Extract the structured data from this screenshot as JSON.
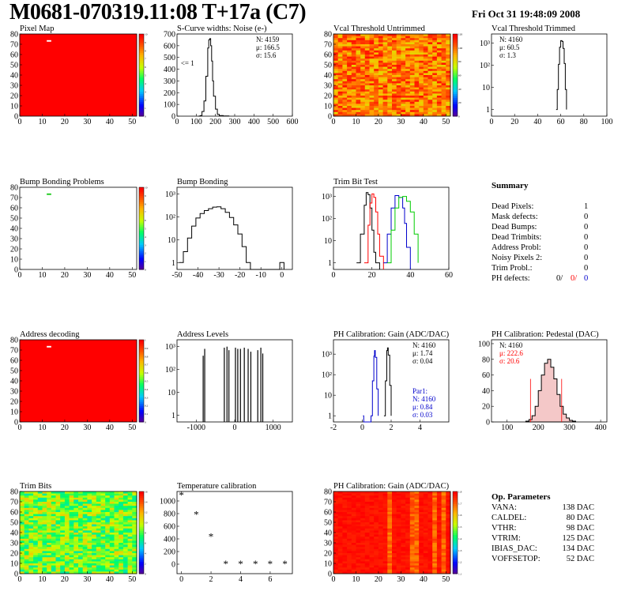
{
  "header": {
    "title": "M0681-070319.11:08 T+17a (C7)",
    "date": "Fri Oct 31 19:48:09 2008"
  },
  "colors": {
    "black": "#000000",
    "red": "#ff0000",
    "green": "#00cc00",
    "blue": "#0000cc"
  },
  "chart_data": [
    {
      "id": "pixel-map",
      "type": "heatmap",
      "title": "Pixel Map",
      "x_ticks": [
        "0",
        "10",
        "20",
        "30",
        "40",
        "50"
      ],
      "y_ticks": [
        "0",
        "10",
        "20",
        "30",
        "40",
        "50",
        "60",
        "70",
        "80"
      ],
      "z_ticks": [
        "0",
        "1",
        "2",
        "3",
        "4",
        "5",
        "6",
        "7",
        "8",
        "9",
        "10"
      ],
      "fill": "uniform red, one dead pixel near (12,74)"
    },
    {
      "id": "scurve",
      "type": "line",
      "title": "S-Curve widths: Noise (e-)",
      "x_ticks": [
        "0",
        "100",
        "200",
        "300",
        "400",
        "500",
        "600"
      ],
      "y_ticks": [
        "0",
        "100",
        "200",
        "300",
        "400",
        "500",
        "600",
        "700"
      ],
      "annotation": "<= 1",
      "stats": {
        "N": "N: 4159",
        "mean": "μ: 166.5",
        "sigma": "σ: 15.6"
      },
      "x": [
        110,
        120,
        130,
        140,
        150,
        160,
        165,
        170,
        175,
        180,
        185,
        190,
        200,
        210,
        220,
        240,
        270
      ],
      "y": [
        0,
        5,
        40,
        130,
        340,
        580,
        650,
        660,
        600,
        470,
        300,
        170,
        60,
        15,
        5,
        2,
        0
      ]
    },
    {
      "id": "vcal-untrimmed",
      "type": "heatmap",
      "title": "Vcal Threshold Untrimmed",
      "x_ticks": [
        "0",
        "10",
        "20",
        "30",
        "40",
        "50"
      ],
      "y_ticks": [
        "0",
        "10",
        "20",
        "30",
        "40",
        "50",
        "60",
        "70",
        "80"
      ],
      "z_ticks": [
        "0",
        "20",
        "40",
        "60",
        "80",
        "100",
        "120"
      ],
      "fill": "noisy orange/red"
    },
    {
      "id": "vcal-trimmed",
      "type": "line",
      "title": "Vcal Threshold Trimmed",
      "log_y": true,
      "x_ticks": [
        "0",
        "20",
        "40",
        "60",
        "80",
        "100"
      ],
      "y_ticks": [
        "1",
        "10",
        "10²",
        "10³"
      ],
      "stats": {
        "N": "N: 4160",
        "mean": "μ: 60.5",
        "sigma": "σ: 1.3"
      },
      "x": [
        56,
        57,
        58,
        59,
        60,
        61,
        62,
        63,
        64,
        65
      ],
      "y": [
        1,
        8,
        110,
        650,
        1300,
        1200,
        580,
        120,
        8,
        1
      ]
    },
    {
      "id": "bump-problems",
      "type": "heatmap",
      "title": "Bump Bonding Problems",
      "x_ticks": [
        "0",
        "10",
        "20",
        "30",
        "40",
        "50"
      ],
      "y_ticks": [
        "0",
        "10",
        "20",
        "30",
        "40",
        "50",
        "60",
        "70",
        "80"
      ],
      "z_ticks": [
        "0",
        "1",
        "2",
        "3",
        "4",
        "5",
        "6",
        "7",
        "8",
        "9",
        "10"
      ],
      "fill": "empty with one green pixel near (12,74)"
    },
    {
      "id": "bump-bonding",
      "type": "line",
      "title": "Bump Bonding",
      "log_y": true,
      "x_ticks": [
        "-50",
        "-40",
        "-30",
        "-20",
        "-10",
        "0"
      ],
      "y_ticks": [
        "1",
        "10",
        "10²",
        "10³"
      ],
      "x": [
        -49,
        -47,
        -45,
        -43,
        -41,
        -39,
        -37,
        -35,
        -33,
        -31,
        -29,
        -27,
        -25,
        -23,
        -21,
        -19,
        -17,
        -15,
        -1,
        1
      ],
      "y": [
        1,
        3,
        12,
        40,
        90,
        140,
        190,
        230,
        270,
        280,
        230,
        160,
        95,
        45,
        18,
        5,
        1,
        0,
        1,
        0
      ]
    },
    {
      "id": "trim-bit-test",
      "type": "line",
      "title": "Trim Bit Test",
      "log_y": true,
      "x_ticks": [
        "0",
        "20",
        "40",
        "60"
      ],
      "y_ticks": [
        "1",
        "10",
        "10²",
        "10³"
      ],
      "series": [
        {
          "color": "#000000",
          "x": [
            12,
            14,
            16,
            17,
            18,
            19,
            20,
            21,
            22,
            24
          ],
          "y": [
            1,
            20,
            400,
            1500,
            1200,
            300,
            30,
            3,
            1,
            0
          ]
        },
        {
          "color": "#ff0000",
          "x": [
            16,
            18,
            19,
            20,
            21,
            22,
            23,
            24,
            26
          ],
          "y": [
            1,
            50,
            500,
            1300,
            900,
            200,
            20,
            2,
            0
          ]
        },
        {
          "color": "#0000cc",
          "x": [
            26,
            28,
            30,
            32,
            34,
            36,
            37,
            38,
            40
          ],
          "y": [
            1,
            20,
            300,
            1100,
            900,
            300,
            60,
            5,
            0
          ]
        },
        {
          "color": "#00cc00",
          "x": [
            28,
            30,
            32,
            34,
            36,
            38,
            40,
            42,
            44
          ],
          "y": [
            1,
            30,
            300,
            900,
            1000,
            600,
            200,
            20,
            1
          ]
        }
      ]
    },
    {
      "id": "address-decoding",
      "type": "heatmap",
      "title": "Address decoding",
      "x_ticks": [
        "0",
        "10",
        "20",
        "30",
        "40",
        "50"
      ],
      "y_ticks": [
        "0",
        "10",
        "20",
        "30",
        "40",
        "50",
        "60",
        "70",
        "80"
      ],
      "z_ticks": [
        "0",
        "0.1",
        "0.2",
        "0.3",
        "0.4",
        "0.5",
        "0.6",
        "0.7",
        "0.8",
        "0.9",
        "1"
      ],
      "fill": "uniform red, one dead pixel near (12,74)"
    },
    {
      "id": "address-levels",
      "type": "line",
      "title": "Address Levels",
      "log_y": true,
      "x_ticks": [
        "-1000",
        "0",
        "1000"
      ],
      "y_ticks": [
        "1",
        "10",
        "10²",
        "10³"
      ],
      "peaks_x": [
        -820,
        -780,
        -270,
        -200,
        -150,
        20,
        80,
        150,
        250,
        350,
        420,
        600,
        680,
        730
      ],
      "peaks_y": [
        400,
        800,
        900,
        1000,
        700,
        900,
        800,
        800,
        900,
        800,
        600,
        700,
        900,
        500
      ]
    },
    {
      "id": "ph-gain",
      "type": "line",
      "title": "PH Calibration: Gain (ADC/DAC)",
      "log_y": true,
      "x_ticks": [
        "-2",
        "0",
        "2",
        "4"
      ],
      "y_ticks": [
        "1",
        "10",
        "10²",
        "10³"
      ],
      "stats": {
        "N": "N: 4160",
        "mean": "μ: 1.74",
        "sigma": "σ: 0.04"
      },
      "stats2": {
        "label": "Par1:",
        "N": "N: 4160",
        "mean": "μ: 0.84",
        "sigma": "σ: 0.03"
      },
      "series": [
        {
          "color": "#000000",
          "x": [
            1.5,
            1.6,
            1.7,
            1.75,
            1.8,
            1.9,
            2.0
          ],
          "y": [
            1,
            50,
            1500,
            2000,
            900,
            30,
            1
          ]
        },
        {
          "color": "#0000cc",
          "x": [
            0.05,
            0.1,
            0.6,
            0.7,
            0.8,
            0.85,
            0.9,
            1.0,
            1.1
          ],
          "y": [
            1,
            0,
            1,
            50,
            800,
            1500,
            700,
            20,
            1
          ]
        }
      ]
    },
    {
      "id": "ph-pedestal",
      "type": "line",
      "title": "PH Calibration: Pedestal (DAC)",
      "x_ticks": [
        "100",
        "200",
        "300",
        "400"
      ],
      "y_ticks": [
        "0",
        "20",
        "40",
        "60",
        "80",
        "100"
      ],
      "stats": {
        "N": "N: 4160",
        "mean": "μ: 222.6",
        "sigma": "σ: 20.6"
      },
      "x": [
        160,
        170,
        180,
        190,
        200,
        210,
        220,
        230,
        240,
        250,
        260,
        270,
        280,
        290,
        300,
        310
      ],
      "y": [
        1,
        3,
        8,
        20,
        40,
        60,
        75,
        80,
        70,
        55,
        35,
        20,
        10,
        5,
        2,
        1
      ]
    },
    {
      "id": "trim-bits",
      "type": "heatmap",
      "title": "Trim Bits",
      "x_ticks": [
        "0",
        "10",
        "20",
        "30",
        "40",
        "50"
      ],
      "y_ticks": [
        "0",
        "10",
        "20",
        "30",
        "40",
        "50",
        "60",
        "70",
        "80"
      ],
      "z_ticks": [
        "0",
        "2",
        "4",
        "6",
        "8",
        "10",
        "12",
        "14",
        "16"
      ],
      "fill": "noisy green/yellow"
    },
    {
      "id": "temperature",
      "type": "scatter",
      "title": "Temperature calibration",
      "x_ticks": [
        "0",
        "2",
        "4",
        "6"
      ],
      "y_ticks": [
        "0",
        "200",
        "400",
        "600",
        "800",
        "1000"
      ],
      "x": [
        0,
        1,
        2,
        3,
        4,
        5,
        6,
        7
      ],
      "y": [
        1090,
        780,
        430,
        0,
        0,
        0,
        0,
        0
      ]
    },
    {
      "id": "ph-gain-map",
      "type": "heatmap",
      "title": "PH Calibration: Gain (ADC/DAC)",
      "x_ticks": [
        "0",
        "10",
        "20",
        "30",
        "40",
        "50"
      ],
      "y_ticks": [
        "0",
        "10",
        "20",
        "30",
        "40",
        "50",
        "60",
        "70",
        "80"
      ],
      "z_ticks": [
        "1.1",
        "1.2",
        "1.3",
        "1.4",
        "1.5",
        "1.6",
        "1.7",
        "1.8"
      ],
      "fill": "red with column stripes"
    }
  ],
  "summary": {
    "title": "Summary",
    "rows": [
      {
        "label": "Dead Pixels:",
        "value": "1"
      },
      {
        "label": "Mask defects:",
        "value": "0"
      },
      {
        "label": "Dead Bumps:",
        "value": "0"
      },
      {
        "label": "Dead Trimbits:",
        "value": "0"
      },
      {
        "label": "Address Probl:",
        "value": "0"
      },
      {
        "label": "Noisy Pixels 2:",
        "value": "0"
      },
      {
        "label": "Trim Probl.:",
        "value": "0"
      }
    ],
    "ph_label": "PH defects:",
    "ph_values": [
      "0/",
      "0/",
      "0"
    ]
  },
  "op_params": {
    "title": "Op. Parameters",
    "rows": [
      {
        "label": "VANA:",
        "value": "138 DAC"
      },
      {
        "label": "CALDEL:",
        "value": "80 DAC"
      },
      {
        "label": "VTHR:",
        "value": "98 DAC"
      },
      {
        "label": "VTRIM:",
        "value": "125 DAC"
      },
      {
        "label": "IBIAS_DAC:",
        "value": "134 DAC"
      },
      {
        "label": "VOFFSETOP:",
        "value": "52 DAC"
      }
    ]
  }
}
